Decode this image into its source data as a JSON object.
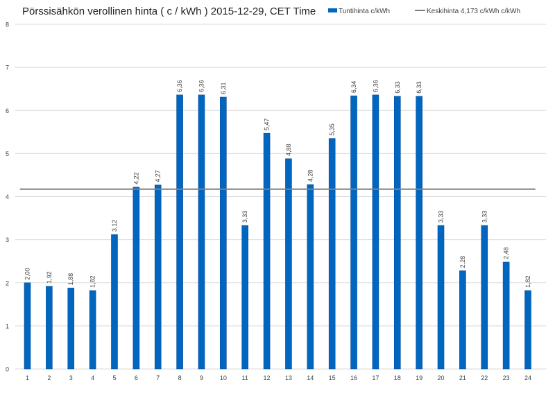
{
  "chart_data": {
    "type": "bar",
    "title": "Pörssisähkön verollinen hinta ( c / kWh ) 2015-12-29, CET Time",
    "categories": [
      "1",
      "2",
      "3",
      "4",
      "5",
      "6",
      "7",
      "8",
      "9",
      "10",
      "11",
      "12",
      "13",
      "14",
      "15",
      "16",
      "17",
      "18",
      "19",
      "20",
      "21",
      "22",
      "23",
      "24"
    ],
    "series": [
      {
        "name": "Tuntihinta c/kWh",
        "type": "bar",
        "color": "#0066c0",
        "values": [
          2.0,
          1.92,
          1.88,
          1.82,
          3.12,
          4.22,
          4.27,
          6.36,
          6.36,
          6.31,
          3.33,
          5.47,
          4.88,
          4.28,
          5.35,
          6.34,
          6.36,
          6.33,
          6.33,
          3.33,
          2.28,
          3.33,
          2.48,
          1.82
        ],
        "labels": [
          "2,00",
          "1,92",
          "1,88",
          "1,82",
          "3,12",
          "4,22",
          "4,27",
          "6,36",
          "6,36",
          "6,31",
          "3,33",
          "5,47",
          "4,88",
          "4,28",
          "5,35",
          "6,34",
          "6,36",
          "6,33",
          "6,33",
          "3,33",
          "2,28",
          "3,33",
          "2,48",
          "1,82"
        ]
      },
      {
        "name": "Keskihinta 4,173 c/kWh c/kWh",
        "type": "line",
        "color": "#808080",
        "value": 4.173
      }
    ],
    "ylim": [
      0,
      8
    ],
    "yticks": [
      "0",
      "1",
      "2",
      "3",
      "4",
      "5",
      "6",
      "7",
      "8"
    ],
    "grid": true,
    "legend": "top-right"
  }
}
